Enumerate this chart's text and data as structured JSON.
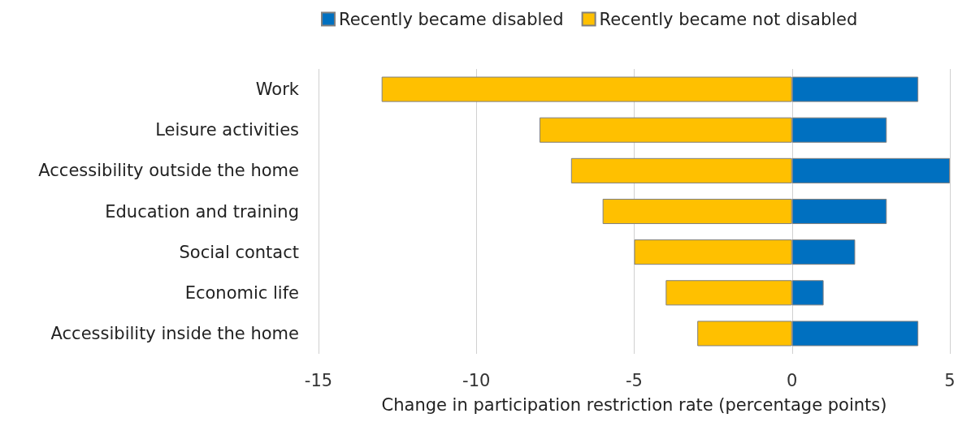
{
  "chart_data": {
    "type": "bar",
    "orientation": "horizontal",
    "stacked": true,
    "xlabel": "Change in participation restriction rate (percentage points)",
    "categories": [
      "Work",
      "Leisure activities",
      "Accessibility outside the home",
      "Education and training",
      "Social contact",
      "Economic life",
      "Accessibility inside the home"
    ],
    "series": [
      {
        "name": "Recently became disabled",
        "color": "#0070c0",
        "values": [
          4,
          3,
          5,
          3,
          2,
          1,
          4
        ]
      },
      {
        "name": "Recently became not disabled",
        "color": "#ffc000",
        "values": [
          -13,
          -8,
          -7,
          -6,
          -5,
          -4,
          -3
        ]
      }
    ],
    "xlim": [
      -15,
      5
    ],
    "xticks": [
      -15,
      -10,
      -5,
      0,
      5
    ],
    "grid": "x",
    "legend": "top"
  }
}
